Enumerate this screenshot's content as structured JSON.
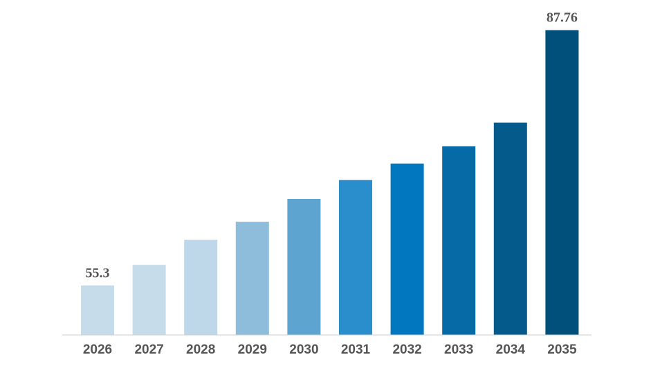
{
  "chart_data": {
    "type": "bar",
    "title": "",
    "xlabel": "",
    "ylabel": "",
    "categories": [
      "2026",
      "2027",
      "2028",
      "2029",
      "2030",
      "2031",
      "2032",
      "2033",
      "2034",
      "2035"
    ],
    "values": [
      55.3,
      57.9,
      61.1,
      63.4,
      66.3,
      68.7,
      70.8,
      73.0,
      76.0,
      87.76
    ],
    "data_labels": [
      "55.3",
      "",
      "",
      "",
      "",
      "",
      "",
      "",
      "",
      "87.76"
    ],
    "ylim": [
      49,
      88
    ],
    "grid": false,
    "legend": "none",
    "colors": [
      "#c6dcea",
      "#c6dcea",
      "#bed8ea",
      "#8ebcdb",
      "#5da4d0",
      "#2b8ecc",
      "#0077be",
      "#066aa6",
      "#045a8a",
      "#01507b"
    ],
    "axis_color": "#cccccc",
    "label_color": "#555555"
  }
}
